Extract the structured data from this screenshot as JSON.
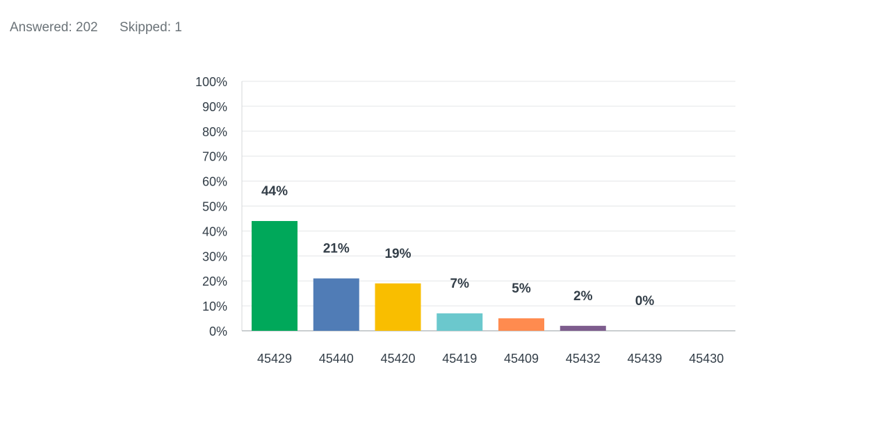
{
  "summary": {
    "answered": "Answered: 202",
    "skipped": "Skipped: 1"
  },
  "chart_data": {
    "type": "bar",
    "categories": [
      "45429",
      "45440",
      "45420",
      "45419",
      "45409",
      "45432",
      "45439",
      "45430"
    ],
    "values": [
      44,
      21,
      19,
      7,
      5,
      2,
      0,
      0
    ],
    "data_labels": [
      "44%",
      "21%",
      "19%",
      "7%",
      "5%",
      "2%",
      "0%",
      ""
    ],
    "colors": [
      "#00a85a",
      "#507cb6",
      "#f9be00",
      "#6bc8cd",
      "#ff8b4f",
      "#7d5c8d",
      "#00a85a",
      "#507cb6"
    ],
    "y_ticks": [
      "0%",
      "10%",
      "20%",
      "30%",
      "40%",
      "50%",
      "60%",
      "70%",
      "80%",
      "90%",
      "100%"
    ],
    "ylim": [
      0,
      100
    ],
    "grid": true,
    "title": "",
    "xlabel": "",
    "ylabel": ""
  }
}
